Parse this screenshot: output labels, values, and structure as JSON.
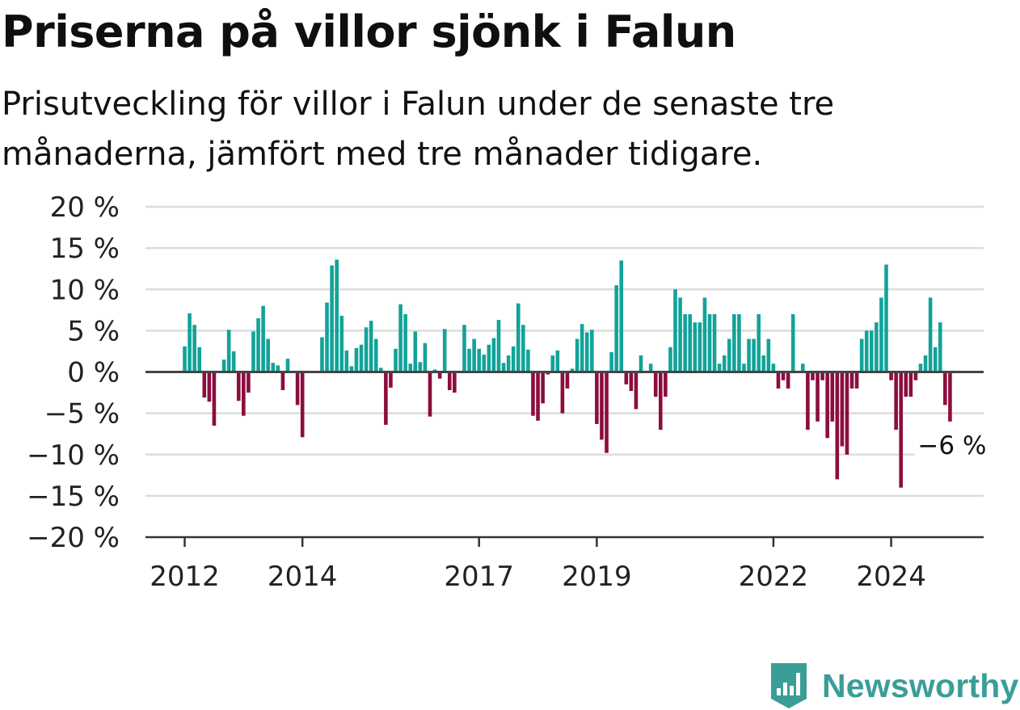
{
  "title": "Priserna på villor sjönk i Falun",
  "subtitle": "Prisutveckling för villor i Falun under de senaste tre månaderna, jämfört med tre månader tidigare.",
  "brand": {
    "name": "Newsworthy",
    "icon": "newsworthy-logo-icon",
    "color": "#3a9e97"
  },
  "chart_data": {
    "type": "bar",
    "title": "Priserna på villor sjönk i Falun",
    "subtitle": "Prisutveckling för villor i Falun under de senaste tre månaderna, jämfört med tre månader tidigare.",
    "x_start": "2012-01",
    "x_unit": "month",
    "x_ticks": [
      {
        "label": "2012",
        "date": "2012-01"
      },
      {
        "label": "2014",
        "date": "2014-01"
      },
      {
        "label": "2017",
        "date": "2017-01"
      },
      {
        "label": "2019",
        "date": "2019-01"
      },
      {
        "label": "2022",
        "date": "2022-01"
      },
      {
        "label": "2024",
        "date": "2024-01"
      }
    ],
    "y_ticks": [
      {
        "value": 20,
        "label": "20 %"
      },
      {
        "value": 15,
        "label": "15 %"
      },
      {
        "value": 10,
        "label": "10 %"
      },
      {
        "value": 5,
        "label": "5 %"
      },
      {
        "value": 0,
        "label": "0 %"
      },
      {
        "value": -5,
        "label": "−5 %"
      },
      {
        "value": -10,
        "label": "−10 %"
      },
      {
        "value": -15,
        "label": "−15 %"
      },
      {
        "value": -20,
        "label": "−20 %"
      }
    ],
    "ylim": [
      -20,
      20
    ],
    "grid": true,
    "colors": {
      "positive": "#12a399",
      "negative": "#8c0d3e"
    },
    "values": [
      3.1,
      7.1,
      5.7,
      3.0,
      -3.1,
      -3.6,
      -6.5,
      0,
      1.5,
      5.1,
      2.5,
      -3.5,
      -5.3,
      -2.5,
      4.9,
      6.5,
      8.0,
      4.0,
      1.1,
      0.8,
      -2.2,
      1.6,
      0,
      -4.0,
      -7.9,
      0,
      0,
      0,
      4.2,
      8.4,
      12.9,
      13.6,
      6.8,
      2.6,
      0.7,
      2.9,
      3.3,
      5.4,
      6.2,
      4.0,
      0.5,
      -6.4,
      -1.9,
      2.8,
      8.2,
      7.0,
      1.0,
      4.9,
      1.2,
      3.5,
      -5.4,
      0.3,
      -0.8,
      5.2,
      -2.2,
      -2.5,
      0,
      5.7,
      2.8,
      4.0,
      2.8,
      2.1,
      3.3,
      4.1,
      6.3,
      1.1,
      2.0,
      3.1,
      8.3,
      5.7,
      2.7,
      -5.3,
      -5.9,
      -3.8,
      -0.3,
      2.0,
      2.6,
      -5.0,
      -2.0,
      0.4,
      4.0,
      5.8,
      4.8,
      5.1,
      -6.3,
      -8.2,
      -9.8,
      2.4,
      10.5,
      13.5,
      -1.5,
      -2.3,
      -4.5,
      2.0,
      0,
      1.0,
      -3.0,
      -7.0,
      -3.0,
      3.0,
      10.0,
      9.0,
      7.0,
      7.0,
      6.0,
      6.0,
      9.0,
      7.0,
      7.0,
      1.0,
      2.0,
      4.0,
      7.0,
      7.0,
      1.0,
      4.0,
      4.0,
      7.0,
      2.0,
      4.0,
      1.0,
      -2.0,
      -1.0,
      -2.0,
      7.0,
      0,
      1.0,
      -7.0,
      -1.0,
      -6.0,
      -1.0,
      -8.0,
      -6.0,
      -13.0,
      -9.0,
      -10.0,
      -2.0,
      -2.0,
      4.0,
      5.0,
      5.0,
      6.0,
      9.0,
      13.0,
      -1.0,
      -7.0,
      -14.0,
      -3.0,
      -3.0,
      -1.0,
      1.0,
      2.0,
      9.0,
      3.0,
      6.0,
      -4.0,
      -6.0
    ],
    "last_value_label": "−6 %"
  }
}
